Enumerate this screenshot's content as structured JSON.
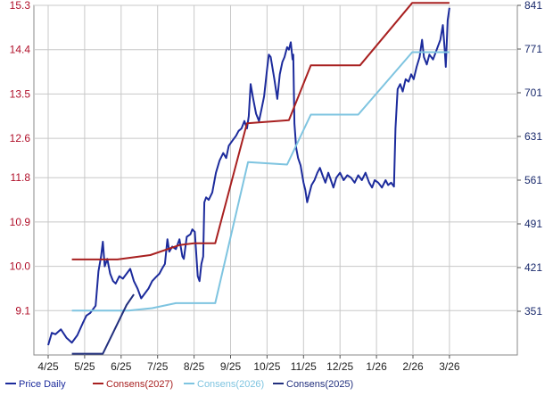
{
  "chart_data": {
    "type": "line",
    "x_ticks": [
      "4/25",
      "5/25",
      "6/25",
      "7/25",
      "8/25",
      "9/25",
      "10/25",
      "11/25",
      "12/25",
      "1/26",
      "2/26",
      "3/26"
    ],
    "y_left": {
      "ticks": [
        "15.3",
        "14.4",
        "13.5",
        "12.6",
        "11.8",
        "10.9",
        "10.0",
        "9.1"
      ],
      "ylim": [
        8.2,
        15.3
      ]
    },
    "y_right": {
      "ticks": [
        "841",
        "771",
        "701",
        "631",
        "561",
        "491",
        "421",
        "351"
      ],
      "ylim": [
        281,
        841
      ]
    },
    "grid": true,
    "legend_position": "bottom",
    "series": [
      {
        "name": "Price Daily",
        "color": "#1c2b9c",
        "axis": "left",
        "points": [
          [
            0,
            8.4
          ],
          [
            0.1,
            8.65
          ],
          [
            0.2,
            8.62
          ],
          [
            0.35,
            8.72
          ],
          [
            0.5,
            8.55
          ],
          [
            0.65,
            8.45
          ],
          [
            0.8,
            8.6
          ],
          [
            0.95,
            8.85
          ],
          [
            1.05,
            9.0
          ],
          [
            1.15,
            9.05
          ],
          [
            1.3,
            9.2
          ],
          [
            1.38,
            9.9
          ],
          [
            1.45,
            10.2
          ],
          [
            1.5,
            10.5
          ],
          [
            1.55,
            10.0
          ],
          [
            1.62,
            10.15
          ],
          [
            1.7,
            9.85
          ],
          [
            1.78,
            9.7
          ],
          [
            1.85,
            9.65
          ],
          [
            1.95,
            9.8
          ],
          [
            2.05,
            9.75
          ],
          [
            2.15,
            9.85
          ],
          [
            2.25,
            9.95
          ],
          [
            2.35,
            9.7
          ],
          [
            2.45,
            9.55
          ],
          [
            2.55,
            9.35
          ],
          [
            2.65,
            9.45
          ],
          [
            2.75,
            9.55
          ],
          [
            2.85,
            9.7
          ],
          [
            2.95,
            9.78
          ],
          [
            3.05,
            9.85
          ],
          [
            3.12,
            9.95
          ],
          [
            3.2,
            10.05
          ],
          [
            3.27,
            10.55
          ],
          [
            3.32,
            10.3
          ],
          [
            3.4,
            10.4
          ],
          [
            3.5,
            10.35
          ],
          [
            3.6,
            10.55
          ],
          [
            3.68,
            10.2
          ],
          [
            3.72,
            10.15
          ],
          [
            3.8,
            10.6
          ],
          [
            3.9,
            10.65
          ],
          [
            3.95,
            10.75
          ],
          [
            4.02,
            10.7
          ],
          [
            4.1,
            9.8
          ],
          [
            4.15,
            9.7
          ],
          [
            4.2,
            10.05
          ],
          [
            4.25,
            10.2
          ],
          [
            4.28,
            11.3
          ],
          [
            4.33,
            11.4
          ],
          [
            4.4,
            11.35
          ],
          [
            4.5,
            11.5
          ],
          [
            4.6,
            11.9
          ],
          [
            4.7,
            12.15
          ],
          [
            4.8,
            12.3
          ],
          [
            4.88,
            12.2
          ],
          [
            4.95,
            12.45
          ],
          [
            5.05,
            12.55
          ],
          [
            5.15,
            12.65
          ],
          [
            5.22,
            12.75
          ],
          [
            5.3,
            12.8
          ],
          [
            5.38,
            12.95
          ],
          [
            5.45,
            12.8
          ],
          [
            5.5,
            13.05
          ],
          [
            5.55,
            13.7
          ],
          [
            5.62,
            13.4
          ],
          [
            5.7,
            13.1
          ],
          [
            5.78,
            12.95
          ],
          [
            5.85,
            13.2
          ],
          [
            5.92,
            13.45
          ],
          [
            6.0,
            14.0
          ],
          [
            6.05,
            14.3
          ],
          [
            6.1,
            14.25
          ],
          [
            6.2,
            13.8
          ],
          [
            6.28,
            13.4
          ],
          [
            6.35,
            13.9
          ],
          [
            6.42,
            14.15
          ],
          [
            6.48,
            14.25
          ],
          [
            6.55,
            14.45
          ],
          [
            6.6,
            14.4
          ],
          [
            6.65,
            14.55
          ],
          [
            6.7,
            14.2
          ],
          [
            6.72,
            14.3
          ],
          [
            6.75,
            12.9
          ],
          [
            6.8,
            12.4
          ],
          [
            6.85,
            12.2
          ],
          [
            6.92,
            12.05
          ],
          [
            7.0,
            11.7
          ],
          [
            7.05,
            11.55
          ],
          [
            7.1,
            11.3
          ],
          [
            7.15,
            11.45
          ],
          [
            7.22,
            11.65
          ],
          [
            7.3,
            11.75
          ],
          [
            7.38,
            11.9
          ],
          [
            7.45,
            12.0
          ],
          [
            7.52,
            11.85
          ],
          [
            7.6,
            11.7
          ],
          [
            7.68,
            11.9
          ],
          [
            7.75,
            11.75
          ],
          [
            7.82,
            11.6
          ],
          [
            7.9,
            11.8
          ],
          [
            8.0,
            11.9
          ],
          [
            8.1,
            11.75
          ],
          [
            8.2,
            11.85
          ],
          [
            8.3,
            11.8
          ],
          [
            8.4,
            11.7
          ],
          [
            8.5,
            11.85
          ],
          [
            8.6,
            11.75
          ],
          [
            8.7,
            11.9
          ],
          [
            8.8,
            11.7
          ],
          [
            8.88,
            11.6
          ],
          [
            8.95,
            11.75
          ],
          [
            9.05,
            11.7
          ],
          [
            9.15,
            11.6
          ],
          [
            9.25,
            11.75
          ],
          [
            9.32,
            11.65
          ],
          [
            9.4,
            11.7
          ],
          [
            9.48,
            11.62
          ],
          [
            9.52,
            12.8
          ],
          [
            9.58,
            13.6
          ],
          [
            9.65,
            13.7
          ],
          [
            9.72,
            13.55
          ],
          [
            9.8,
            13.8
          ],
          [
            9.88,
            13.75
          ],
          [
            9.95,
            13.9
          ],
          [
            10.02,
            13.8
          ],
          [
            10.1,
            14.05
          ],
          [
            10.18,
            14.25
          ],
          [
            10.25,
            14.6
          ],
          [
            10.3,
            14.25
          ],
          [
            10.38,
            14.1
          ],
          [
            10.45,
            14.3
          ],
          [
            10.55,
            14.2
          ],
          [
            10.65,
            14.4
          ],
          [
            10.75,
            14.6
          ],
          [
            10.82,
            14.9
          ],
          [
            10.87,
            14.4
          ],
          [
            10.9,
            14.05
          ],
          [
            10.95,
            15.0
          ],
          [
            11.0,
            15.25
          ]
        ]
      },
      {
        "name": "Consens(2027)",
        "color": "#a82020",
        "axis": "right",
        "points": [
          [
            0.65,
            434
          ],
          [
            1.9,
            434
          ],
          [
            2.8,
            441
          ],
          [
            3.6,
            457
          ],
          [
            4.0,
            460
          ],
          [
            4.58,
            460
          ],
          [
            5.45,
            652
          ],
          [
            6.6,
            657
          ],
          [
            7.2,
            745
          ],
          [
            8.38,
            745
          ],
          [
            8.55,
            745
          ],
          [
            9.98,
            845
          ],
          [
            11.0,
            845
          ]
        ]
      },
      {
        "name": "Consens(2026)",
        "color": "#7ec4e0",
        "axis": "right",
        "points": [
          [
            0.65,
            352
          ],
          [
            2.2,
            352
          ],
          [
            2.85,
            356
          ],
          [
            3.5,
            364
          ],
          [
            4.0,
            364
          ],
          [
            4.58,
            364
          ],
          [
            5.48,
            590
          ],
          [
            6.55,
            586
          ],
          [
            7.2,
            666
          ],
          [
            8.38,
            666
          ],
          [
            8.5,
            666
          ],
          [
            9.98,
            766
          ],
          [
            11.0,
            766
          ]
        ]
      },
      {
        "name": "Consens(2025)",
        "color": "#22307e",
        "axis": "right",
        "points": [
          [
            0.65,
            283
          ],
          [
            1.5,
            283
          ],
          [
            2.15,
            361
          ],
          [
            2.35,
            378
          ]
        ]
      }
    ]
  }
}
